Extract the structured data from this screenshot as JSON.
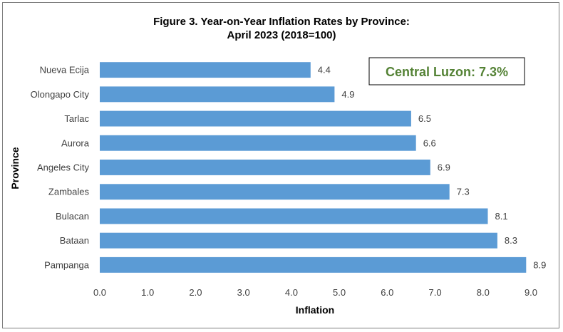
{
  "chart_data": {
    "type": "bar",
    "orientation": "horizontal",
    "title_line1": "Figure 3. Year-on-Year Inflation Rates by Province:",
    "title_line2": "April 2023 (2018=100)",
    "xlabel": "Inflation",
    "ylabel": "Province",
    "categories": [
      "Nueva Ecija",
      "Olongapo City",
      "Tarlac",
      "Aurora",
      "Angeles City",
      "Zambales",
      "Bulacan",
      "Bataan",
      "Pampanga"
    ],
    "values": [
      4.4,
      4.9,
      6.5,
      6.6,
      6.9,
      7.3,
      8.1,
      8.3,
      8.9
    ],
    "data_labels": [
      "4.4",
      "4.9",
      "6.5",
      "6.6",
      "6.9",
      "7.3",
      "8.1",
      "8.3",
      "8.9"
    ],
    "xlim": [
      0,
      9
    ],
    "xticks": [
      "0.0",
      "1.0",
      "2.0",
      "3.0",
      "4.0",
      "5.0",
      "6.0",
      "7.0",
      "8.0",
      "9.0"
    ],
    "bar_color": "#5b9bd5",
    "grid": false,
    "legend": "none",
    "annotation": {
      "text": "Central Luzon: 7.3%",
      "color": "#548235"
    }
  }
}
